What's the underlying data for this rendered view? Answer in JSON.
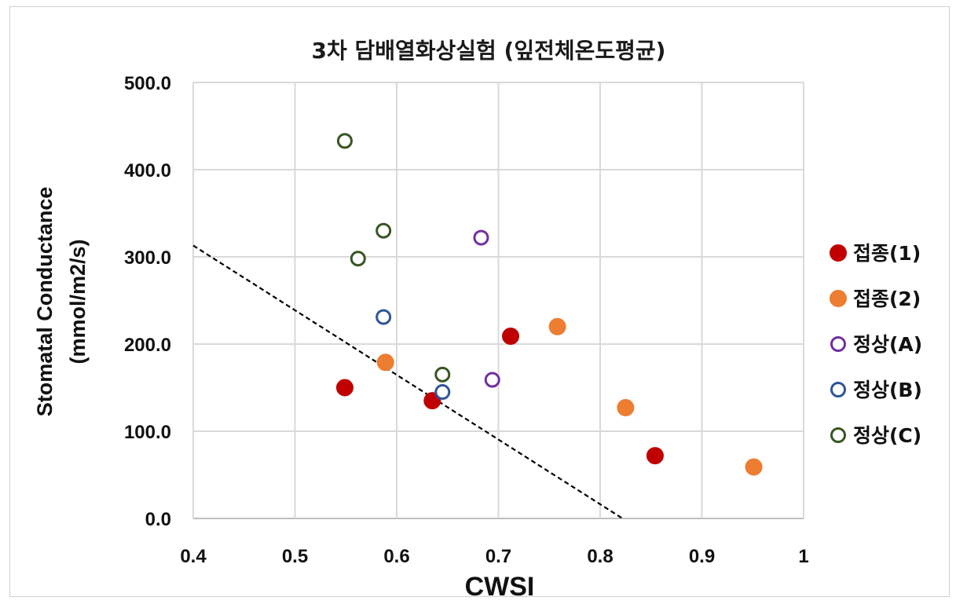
{
  "chart_data": {
    "type": "scatter",
    "title": "3차 담배열화상실험 (잎전체온도평균)",
    "xlabel": "CWSI",
    "ylabel_line1": "Stomatal Conductance",
    "ylabel_line2": "(mmol/m2/s)",
    "xlim": [
      0.4,
      1.0
    ],
    "ylim": [
      0,
      500
    ],
    "x_ticks": [
      0.4,
      0.5,
      0.6,
      0.7,
      0.8,
      0.9,
      1.0
    ],
    "x_tick_labels": [
      "0.4",
      "0.5",
      "0.6",
      "0.7",
      "0.8",
      "0.9",
      "1"
    ],
    "y_ticks": [
      0,
      100,
      200,
      300,
      400,
      500
    ],
    "y_tick_labels": [
      "0.0",
      "100.0",
      "200.0",
      "300.0",
      "400.0",
      "500.0"
    ],
    "grid": true,
    "legend_position": "right",
    "series": [
      {
        "name": "접종(1)",
        "color": "#c00000",
        "marker": "filled-circle",
        "points": [
          [
            0.549,
            150
          ],
          [
            0.635,
            135
          ],
          [
            0.712,
            209
          ],
          [
            0.854,
            72
          ]
        ]
      },
      {
        "name": "접종(2)",
        "color": "#ed7d31",
        "marker": "filled-circle",
        "points": [
          [
            0.589,
            179
          ],
          [
            0.758,
            220
          ],
          [
            0.825,
            127
          ],
          [
            0.951,
            59
          ]
        ]
      },
      {
        "name": "정상(A)",
        "color": "#7030a0",
        "marker": "open-circle",
        "points": [
          [
            0.683,
            322
          ],
          [
            0.694,
            159
          ]
        ]
      },
      {
        "name": "정상(B)",
        "color": "#2f5597",
        "marker": "open-circle",
        "points": [
          [
            0.587,
            231
          ],
          [
            0.645,
            145
          ]
        ]
      },
      {
        "name": "정상(C)",
        "color": "#375623",
        "marker": "open-circle",
        "points": [
          [
            0.549,
            433
          ],
          [
            0.562,
            298
          ],
          [
            0.587,
            330
          ],
          [
            0.645,
            165
          ]
        ]
      }
    ],
    "reference_line": {
      "style": "dashed",
      "color": "#000000",
      "points": [
        [
          0.4,
          313
        ],
        [
          0.822,
          0
        ]
      ]
    }
  }
}
